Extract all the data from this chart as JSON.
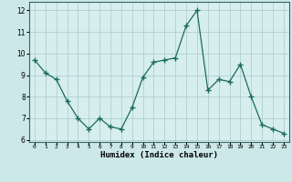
{
  "x": [
    0,
    1,
    2,
    3,
    4,
    5,
    6,
    7,
    8,
    9,
    10,
    11,
    12,
    13,
    14,
    15,
    16,
    17,
    18,
    19,
    20,
    21,
    22,
    23
  ],
  "y": [
    9.7,
    9.1,
    8.8,
    7.8,
    7.0,
    6.5,
    7.0,
    6.6,
    6.5,
    7.5,
    8.9,
    9.6,
    9.7,
    9.8,
    11.3,
    12.0,
    8.3,
    8.8,
    8.7,
    9.5,
    8.0,
    6.7,
    6.5,
    6.3
  ],
  "xlabel": "Humidex (Indice chaleur)",
  "ylim": [
    5.9,
    12.4
  ],
  "xlim": [
    -0.5,
    23.5
  ],
  "yticks": [
    6,
    7,
    8,
    9,
    10,
    11,
    12
  ],
  "xtick_labels": [
    "0",
    "1",
    "2",
    "3",
    "4",
    "5",
    "6",
    "7",
    "8",
    "9",
    "10",
    "11",
    "12",
    "13",
    "14",
    "15",
    "16",
    "17",
    "18",
    "19",
    "20",
    "21",
    "22",
    "23"
  ],
  "line_color": "#1a6b5a",
  "marker": "P",
  "marker_size": 2.5,
  "bg_color": "#cce8e8",
  "grid_color": "#b0d0d0",
  "axes_bg": "#d6eeee"
}
